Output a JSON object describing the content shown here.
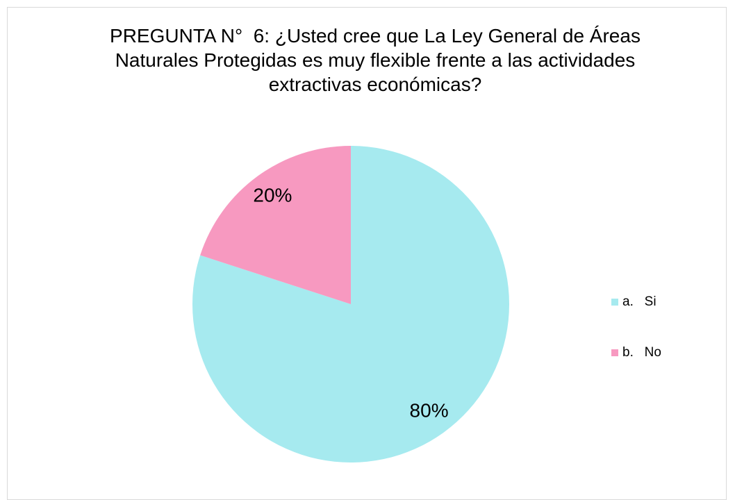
{
  "chart_data": {
    "type": "pie",
    "title": "PREGUNTA N°  6: ¿Usted cree que La Ley General de Áreas Naturales Protegidas es muy flexible frente a las actividades extractivas económicas?",
    "categories": [
      "a.   Si",
      "b.   No"
    ],
    "values": [
      80,
      20
    ],
    "value_labels": [
      "80%",
      "20%"
    ],
    "colors": [
      "#a6eaef",
      "#f799c0"
    ],
    "legend": "right"
  }
}
